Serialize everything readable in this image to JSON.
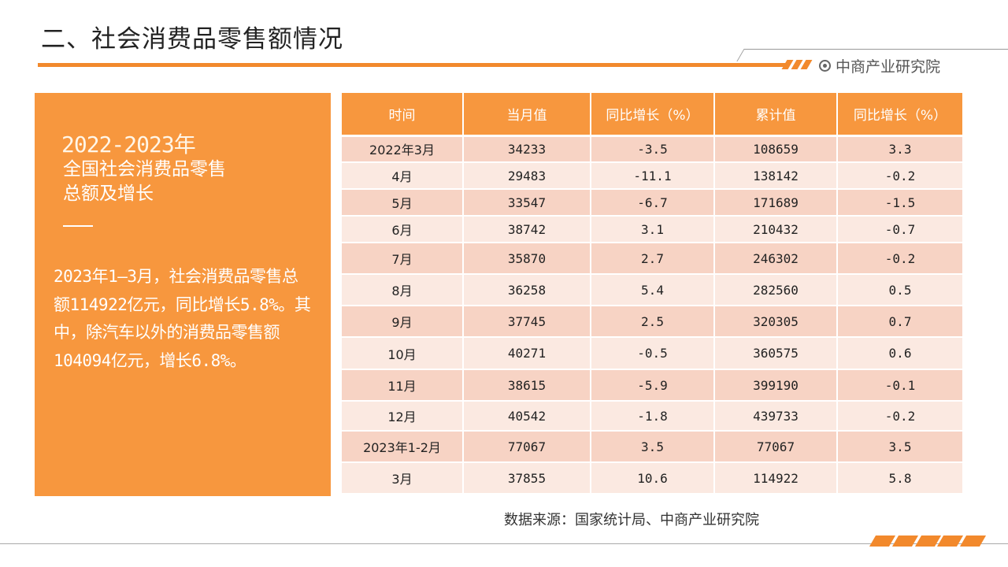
{
  "title": "二、社会消费品零售额情况",
  "brand": "中商产业研究院",
  "left_panel": {
    "year": "2022-2023年",
    "heading_line1": "全国社会消费品零售",
    "heading_line2": "总额及增长",
    "body": "2023年1—3月，社会消费品零售总额114922亿元，同比增长5.8%。其中，除汽车以外的消费品零售额104094亿元，增长6.8%。"
  },
  "table": {
    "headers": [
      "时间",
      "当月值",
      "同比增长（%）",
      "累计值",
      "同比增长（%）"
    ],
    "rows": [
      [
        "2022年3月",
        "34233",
        "-3.5",
        "108659",
        "3.3"
      ],
      [
        "4月",
        "29483",
        "-11.1",
        "138142",
        "-0.2"
      ],
      [
        "5月",
        "33547",
        "-6.7",
        "171689",
        "-1.5"
      ],
      [
        "6月",
        "38742",
        "3.1",
        "210432",
        "-0.7"
      ],
      [
        "7月",
        "35870",
        "2.7",
        "246302",
        "-0.2"
      ],
      [
        "8月",
        "36258",
        "5.4",
        "282560",
        "0.5"
      ],
      [
        "9月",
        "37745",
        "2.5",
        "320305",
        "0.7"
      ],
      [
        "10月",
        "40271",
        "-0.5",
        "360575",
        "0.6"
      ],
      [
        "11月",
        "38615",
        "-5.9",
        "399190",
        "-0.1"
      ],
      [
        "12月",
        "40542",
        "-1.8",
        "439733",
        "-0.2"
      ],
      [
        "2023年1-2月",
        "77067",
        "3.5",
        "77067",
        "3.5"
      ],
      [
        "3月",
        "37855",
        "10.6",
        "114922",
        "5.8"
      ]
    ]
  },
  "source": "数据来源：国家统计局、中商产业研究院",
  "colors": {
    "accent": "#f7973e",
    "row_dark": "#f7d3c4",
    "row_light": "#fbe9e1"
  }
}
